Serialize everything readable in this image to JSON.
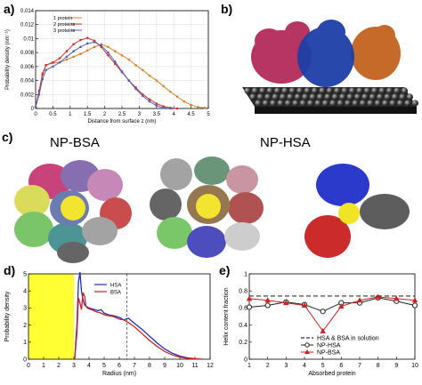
{
  "panels": {
    "a": {
      "label": "a)"
    },
    "b": {
      "label": "b)"
    },
    "c": {
      "label": "c)",
      "np_bsa": "NP-BSA",
      "np_hsa": "NP-HSA"
    },
    "d": {
      "label": "d)"
    },
    "e": {
      "label": "e)"
    }
  },
  "chart_data": [
    {
      "id": "a",
      "type": "line",
      "xlabel": "Distance from surface z (nm)",
      "ylabel": "Probability density (nm⁻¹)",
      "xlim": [
        0,
        5
      ],
      "ylim": [
        0,
        0.014
      ],
      "xticks": [
        "0",
        "0.5",
        "1",
        "1.5",
        "2",
        "2.5",
        "3",
        "3.5",
        "4",
        "4.5",
        "5"
      ],
      "yticks": [
        "0",
        "0.002",
        "0.004",
        "0.006",
        "0.008",
        "0.01",
        "0.012",
        "0.014"
      ],
      "legend_position": "top-left",
      "series": [
        {
          "name": "1 protein",
          "color": "#d9822b",
          "x": [
            0,
            0.1,
            0.2,
            0.3,
            0.5,
            0.7,
            0.9,
            1.1,
            1.3,
            1.5,
            1.7,
            1.9,
            2.1,
            2.3,
            2.5,
            2.7,
            2.9,
            3.1,
            3.3,
            3.5,
            3.7,
            3.9,
            4.1,
            4.3,
            4.5,
            4.7,
            4.9
          ],
          "y": [
            0.0002,
            0.002,
            0.0048,
            0.0062,
            0.0065,
            0.0066,
            0.007,
            0.0074,
            0.0078,
            0.0083,
            0.0088,
            0.0092,
            0.0088,
            0.0082,
            0.0076,
            0.007,
            0.0062,
            0.0055,
            0.0047,
            0.004,
            0.0032,
            0.0024,
            0.0017,
            0.001,
            0.0005,
            0.0002,
            0.0001
          ]
        },
        {
          "name": "2 proteins",
          "color": "#cc3333",
          "x": [
            0,
            0.1,
            0.2,
            0.3,
            0.5,
            0.7,
            0.9,
            1.1,
            1.3,
            1.5,
            1.7,
            1.9,
            2.1,
            2.3,
            2.5,
            2.7,
            2.9,
            3.1,
            3.3,
            3.5,
            3.7,
            3.9,
            4.1
          ],
          "y": [
            0.0002,
            0.0025,
            0.005,
            0.0062,
            0.0066,
            0.0072,
            0.0082,
            0.0092,
            0.0098,
            0.0101,
            0.0097,
            0.0088,
            0.0076,
            0.0064,
            0.0052,
            0.004,
            0.003,
            0.002,
            0.0013,
            0.0007,
            0.0003,
            0.0001,
            0.0
          ]
        },
        {
          "name": "3 proteins",
          "color": "#5560b8",
          "x": [
            0,
            0.1,
            0.2,
            0.3,
            0.5,
            0.7,
            0.9,
            1.1,
            1.3,
            1.5,
            1.7,
            1.9,
            2.1,
            2.3,
            2.5,
            2.7,
            2.9,
            3.1,
            3.3,
            3.5,
            3.7,
            3.9
          ],
          "y": [
            0.0002,
            0.002,
            0.0042,
            0.0055,
            0.006,
            0.0066,
            0.0074,
            0.0082,
            0.0088,
            0.0093,
            0.0095,
            0.009,
            0.008,
            0.0067,
            0.0053,
            0.004,
            0.0028,
            0.0018,
            0.001,
            0.0004,
            0.0001,
            0.0
          ]
        }
      ]
    },
    {
      "id": "d",
      "type": "line",
      "xlabel": "Radius (nm)",
      "ylabel": "Probability density",
      "xlim": [
        0,
        12
      ],
      "ylim": [
        0,
        5
      ],
      "xticks": [
        "0",
        "1",
        "2",
        "3",
        "4",
        "5",
        "6",
        "7",
        "8",
        "9",
        "10",
        "11",
        "12"
      ],
      "yticks": [
        "0",
        "1",
        "2",
        "3",
        "4",
        "5"
      ],
      "shaded_region_x": [
        0,
        3
      ],
      "shaded_color": "#ffff33",
      "dashed_line_x": 6.5,
      "legend_position": "top-center",
      "series": [
        {
          "name": "HSA",
          "color": "#1f2fb8",
          "x": [
            3.05,
            3.2,
            3.3,
            3.4,
            3.5,
            3.6,
            3.7,
            3.8,
            3.9,
            4.0,
            4.2,
            4.4,
            4.6,
            4.8,
            5.0,
            5.3,
            5.6,
            6.0,
            6.3,
            6.6,
            7.0,
            7.5,
            8.0,
            8.5,
            9.0,
            9.5,
            10.0,
            10.5,
            11.0,
            11.5
          ],
          "y": [
            0.0,
            2.0,
            4.5,
            5.1,
            4.0,
            3.5,
            3.2,
            3.1,
            3.05,
            3.0,
            2.95,
            2.9,
            2.85,
            2.9,
            2.7,
            2.6,
            2.55,
            2.45,
            2.3,
            2.4,
            2.1,
            1.75,
            1.35,
            0.95,
            0.6,
            0.35,
            0.18,
            0.08,
            0.03,
            0.0
          ]
        },
        {
          "name": "BSA",
          "color": "#cc2222",
          "x": [
            3.05,
            3.2,
            3.3,
            3.4,
            3.5,
            3.6,
            3.7,
            3.8,
            3.9,
            4.0,
            4.2,
            4.4,
            4.6,
            4.8,
            5.0,
            5.3,
            5.6,
            6.0,
            6.3,
            6.6,
            7.0,
            7.5,
            8.0,
            8.5,
            9.0,
            9.5,
            10.0,
            10.5,
            11.0,
            11.5
          ],
          "y": [
            0.0,
            1.5,
            3.6,
            3.3,
            2.9,
            3.9,
            3.7,
            3.1,
            3.0,
            2.95,
            2.9,
            2.8,
            2.75,
            2.7,
            2.6,
            2.55,
            2.5,
            2.35,
            2.3,
            2.15,
            1.9,
            1.5,
            1.1,
            0.75,
            0.45,
            0.25,
            0.12,
            0.05,
            0.02,
            0.0
          ]
        }
      ]
    },
    {
      "id": "e",
      "type": "line",
      "xlabel": "Absorbed protein",
      "ylabel": "Helix content fraction",
      "xlim": [
        1,
        10
      ],
      "ylim": [
        0,
        1
      ],
      "xticks": [
        "1",
        "2",
        "3",
        "4",
        "5",
        "6",
        "7",
        "8",
        "9",
        "10"
      ],
      "yticks": [
        "0",
        "0.2",
        "0.4",
        "0.6",
        "0.8",
        "1"
      ],
      "legend_position": "bottom-right",
      "reference_line": {
        "name": "HSA & BSA in solution",
        "y": 0.74,
        "color": "#333333"
      },
      "series": [
        {
          "name": "NP-HSA",
          "color": "#222222",
          "marker": "circle",
          "x": [
            1,
            2,
            3,
            4,
            5,
            6,
            7,
            8,
            9,
            10
          ],
          "y": [
            0.61,
            0.63,
            0.67,
            0.64,
            0.56,
            0.66,
            0.66,
            0.72,
            0.68,
            0.63
          ]
        },
        {
          "name": "NP-BSA",
          "color": "#cc2222",
          "marker": "triangle",
          "x": [
            1,
            2,
            3,
            4,
            5,
            6,
            7,
            8,
            9,
            10
          ],
          "y": [
            0.71,
            0.69,
            0.66,
            0.63,
            0.33,
            0.62,
            0.69,
            0.73,
            0.71,
            0.69
          ]
        }
      ]
    }
  ]
}
